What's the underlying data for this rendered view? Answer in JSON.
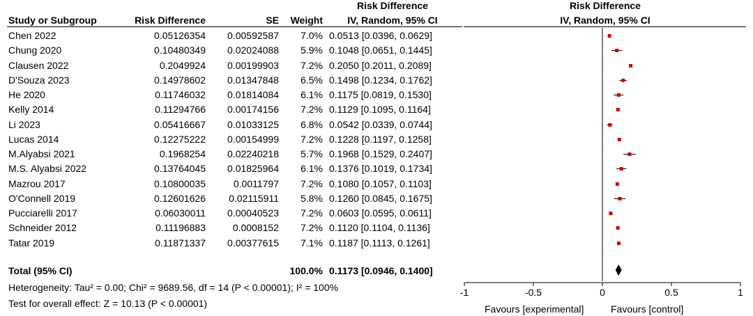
{
  "headers": {
    "study": "Study or Subgroup",
    "rd": "Risk Difference",
    "se": "SE",
    "weight": "Weight",
    "ci_top": "Risk Difference",
    "ci_bottom": "IV, Random, 95% CI",
    "plot_top": "Risk Difference",
    "plot_bottom": "IV, Random, 95% CI"
  },
  "total": {
    "label": "Total (95% CI)",
    "weight": "100.0%",
    "ci": "0.1173 [0.0946, 0.1400]"
  },
  "heterogeneity": "Heterogeneity: Tau² = 0.00; Chi² = 9689.56, df = 14 (P < 0.00001); I² = 100%",
  "overall_effect": "Test for overall effect: Z = 10.13 (P < 0.00001)",
  "axis": {
    "favours_left": "Favours [experimental]",
    "favours_right": "Favours [control]"
  },
  "chart_data": {
    "type": "scatter",
    "subtype": "forest_plot",
    "title": "Risk Difference",
    "subtitle": "IV, Random, 95% CI",
    "xlim": [
      -1,
      1
    ],
    "xticks": [
      "-1",
      "-0.5",
      "0",
      "0.5",
      "1"
    ],
    "xtick_values": [
      -1,
      -0.5,
      0,
      0.5,
      1
    ],
    "studies": [
      {
        "name": "Chen 2022",
        "rd": "0.05126354",
        "se": "0.00592587",
        "weight": "7.0%",
        "ci": "0.0513 [0.0396, 0.0629]",
        "est": 0.0513,
        "lo": 0.0396,
        "hi": 0.0629
      },
      {
        "name": "Chung 2020",
        "rd": "0.10480349",
        "se": "0.02024088",
        "weight": "5.9%",
        "ci": "0.1048 [0.0651, 0.1445]",
        "est": 0.1048,
        "lo": 0.0651,
        "hi": 0.1445
      },
      {
        "name": "Clausen 2022",
        "rd": "0.2049924",
        "se": "0.00199903",
        "weight": "7.2%",
        "ci": "0.2050 [0.2011, 0.2089]",
        "est": 0.205,
        "lo": 0.2011,
        "hi": 0.2089
      },
      {
        "name": "D'Souza 2023",
        "rd": "0.14978602",
        "se": "0.01347848",
        "weight": "6.5%",
        "ci": "0.1498 [0.1234, 0.1762]",
        "est": 0.1498,
        "lo": 0.1234,
        "hi": 0.1762
      },
      {
        "name": "He 2020",
        "rd": "0.11746032",
        "se": "0.01814084",
        "weight": "6.1%",
        "ci": "0.1175 [0.0819, 0.1530]",
        "est": 0.1175,
        "lo": 0.0819,
        "hi": 0.153
      },
      {
        "name": "Kelly 2014",
        "rd": "0.11294766",
        "se": "0.00174156",
        "weight": "7.2%",
        "ci": "0.1129 [0.1095, 0.1164]",
        "est": 0.1129,
        "lo": 0.1095,
        "hi": 0.1164
      },
      {
        "name": "Li 2023",
        "rd": "0.05416667",
        "se": "0.01033125",
        "weight": "6.8%",
        "ci": "0.0542 [0.0339, 0.0744]",
        "est": 0.0542,
        "lo": 0.0339,
        "hi": 0.0744
      },
      {
        "name": "Lucas 2014",
        "rd": "0.12275222",
        "se": "0.00154999",
        "weight": "7.2%",
        "ci": "0.1228 [0.1197, 0.1258]",
        "est": 0.1228,
        "lo": 0.1197,
        "hi": 0.1258
      },
      {
        "name": "M.Alyabsi 2021",
        "rd": "0.1968254",
        "se": "0.02240218",
        "weight": "5.7%",
        "ci": "0.1968 [0.1529, 0.2407]",
        "est": 0.1968,
        "lo": 0.1529,
        "hi": 0.2407
      },
      {
        "name": "M.S. Alyabsi 2022",
        "rd": "0.13764045",
        "se": "0.01825964",
        "weight": "6.1%",
        "ci": "0.1376 [0.1019, 0.1734]",
        "est": 0.1376,
        "lo": 0.1019,
        "hi": 0.1734
      },
      {
        "name": "Mazrou 2017",
        "rd": "0.10800035",
        "se": "0.0011797",
        "weight": "7.2%",
        "ci": "0.1080 [0.1057, 0.1103]",
        "est": 0.108,
        "lo": 0.1057,
        "hi": 0.1103
      },
      {
        "name": "O'Connell 2019",
        "rd": "0.12601626",
        "se": "0.02115911",
        "weight": "5.8%",
        "ci": "0.1260 [0.0845, 0.1675]",
        "est": 0.126,
        "lo": 0.0845,
        "hi": 0.1675
      },
      {
        "name": "Pucciarelli 2017",
        "rd": "0.06030011",
        "se": "0.00040523",
        "weight": "7.2%",
        "ci": "0.0603 [0.0595, 0.0611]",
        "est": 0.0603,
        "lo": 0.0595,
        "hi": 0.0611
      },
      {
        "name": "Schneider 2012",
        "rd": "0.11196883",
        "se": "0.0008152",
        "weight": "7.2%",
        "ci": "0.1120 [0.1104, 0.1136]",
        "est": 0.112,
        "lo": 0.1104,
        "hi": 0.1136
      },
      {
        "name": "Tatar 2019",
        "rd": "0.11871337",
        "se": "0.00377615",
        "weight": "7.1%",
        "ci": "0.1187 [0.1113, 0.1261]",
        "est": 0.1187,
        "lo": 0.1113,
        "hi": 0.1261
      }
    ],
    "pooled": {
      "est": 0.1173,
      "lo": 0.0946,
      "hi": 0.14
    },
    "colors": {
      "marker": "#cc0000",
      "line": "#000000",
      "diamond": "#000000"
    }
  }
}
